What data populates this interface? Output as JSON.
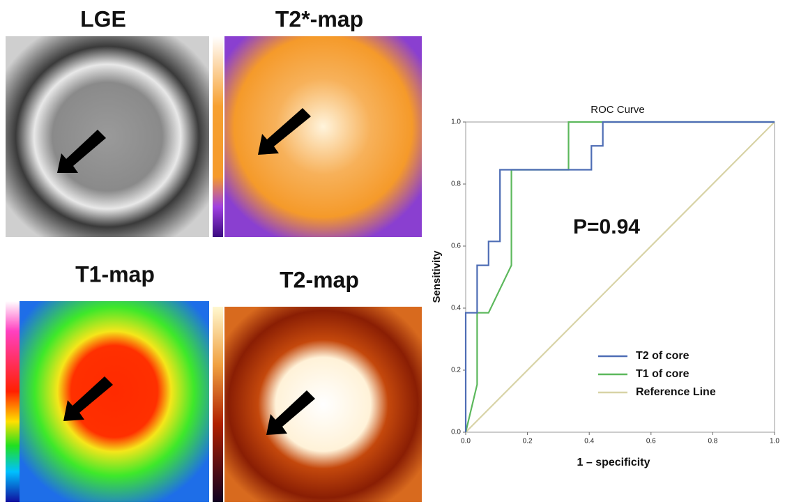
{
  "images": [
    {
      "label": "LGE"
    },
    {
      "label": "T2*-map"
    },
    {
      "label": "T1-map"
    },
    {
      "label": "T2-map"
    }
  ],
  "chart_data": {
    "type": "line",
    "title": "ROC Curve",
    "x_label": "1 – specificity",
    "y_label": "Sensitivity",
    "annotations": [
      "P=0.94"
    ],
    "xlim": [
      0,
      1
    ],
    "ylim": [
      0,
      1
    ],
    "xticks": [
      {
        "value": 0,
        "label": "0.0"
      },
      0.2,
      0.4,
      0.6,
      0.8,
      {
        "value": 1,
        "label": "1.0"
      }
    ],
    "yticks": [
      {
        "value": 0,
        "label": "0.0"
      },
      0.2,
      0.4,
      0.6,
      0.8,
      {
        "value": 1,
        "label": "1.0"
      }
    ],
    "grid": false,
    "legend": "lower right",
    "series": [
      {
        "name": "T2 of core",
        "color": "#4e6db5",
        "x": [
          0,
          0,
          0.037,
          0.037,
          0.074,
          0.074,
          0.111,
          0.111,
          0.407,
          0.407,
          0.444,
          0.444,
          1
        ],
        "values": [
          0,
          0.385,
          0.385,
          0.538,
          0.538,
          0.615,
          0.615,
          0.846,
          0.846,
          0.923,
          0.923,
          1,
          1
        ]
      },
      {
        "name": "T1 of core",
        "color": "#5cb85c",
        "x": [
          0,
          0.037,
          0.037,
          0.074,
          0.148,
          0.148,
          0.333,
          0.333,
          1
        ],
        "values": [
          0,
          0.154,
          0.385,
          0.385,
          0.538,
          0.846,
          0.846,
          1,
          1
        ]
      },
      {
        "name": "Reference Line",
        "color": "#d8d3a6",
        "x": [
          0,
          1
        ],
        "values": [
          0,
          1
        ]
      }
    ]
  }
}
